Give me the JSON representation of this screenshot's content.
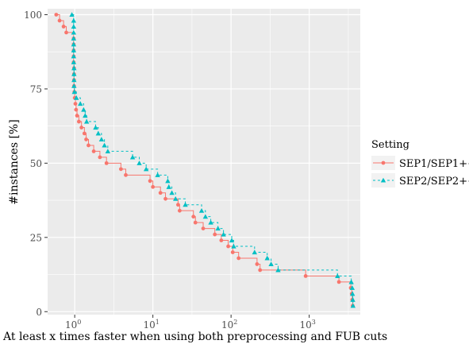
{
  "chart_data": {
    "type": "line",
    "title": "",
    "xlabel": "At least x times faster when using both preprocessing and FUB cuts",
    "ylabel": "#instances [%]",
    "x_scale": "log10",
    "xlim": [
      0.45,
      4500
    ],
    "ylim": [
      -1,
      102
    ],
    "x_ticks": [
      {
        "value": 1,
        "base": "10",
        "exp": "0"
      },
      {
        "value": 10,
        "base": "10",
        "exp": "1"
      },
      {
        "value": 100,
        "base": "10",
        "exp": "2"
      },
      {
        "value": 1000,
        "base": "10",
        "exp": "3"
      }
    ],
    "y_ticks": [
      0,
      25,
      50,
      75,
      100
    ],
    "grid": true,
    "legend": {
      "title": "Setting",
      "position": "right"
    },
    "series": [
      {
        "name": "SEP1/SEP1++",
        "color": "#F8766D",
        "linestyle": "solid",
        "marker": "circle",
        "points": [
          [
            0.58,
            100
          ],
          [
            0.64,
            98
          ],
          [
            0.72,
            96
          ],
          [
            0.78,
            94
          ],
          [
            0.97,
            92
          ],
          [
            0.97,
            90
          ],
          [
            0.97,
            88
          ],
          [
            0.97,
            86
          ],
          [
            0.97,
            84
          ],
          [
            0.98,
            82
          ],
          [
            0.98,
            80
          ],
          [
            0.98,
            78
          ],
          [
            0.98,
            76
          ],
          [
            0.99,
            74
          ],
          [
            1.0,
            72
          ],
          [
            1.02,
            70
          ],
          [
            1.04,
            68
          ],
          [
            1.07,
            66
          ],
          [
            1.13,
            64
          ],
          [
            1.22,
            62
          ],
          [
            1.33,
            60
          ],
          [
            1.4,
            58
          ],
          [
            1.5,
            56
          ],
          [
            1.75,
            54
          ],
          [
            2.1,
            52
          ],
          [
            2.55,
            50
          ],
          [
            3.9,
            48
          ],
          [
            4.5,
            46
          ],
          [
            9.2,
            44
          ],
          [
            10,
            42
          ],
          [
            12.5,
            40
          ],
          [
            14.5,
            38
          ],
          [
            21,
            36
          ],
          [
            22,
            34
          ],
          [
            33,
            32
          ],
          [
            35,
            30
          ],
          [
            44,
            28
          ],
          [
            62,
            26
          ],
          [
            75,
            24
          ],
          [
            92,
            22
          ],
          [
            105,
            20
          ],
          [
            125,
            18
          ],
          [
            215,
            16
          ],
          [
            235,
            14
          ],
          [
            900,
            12
          ],
          [
            2400,
            10
          ],
          [
            3400,
            8
          ],
          [
            3500,
            6
          ],
          [
            3550,
            4
          ],
          [
            3600,
            2
          ]
        ]
      },
      {
        "name": "SEP2/SEP2++",
        "color": "#00BFC4",
        "linestyle": "dashed",
        "marker": "triangle",
        "points": [
          [
            0.92,
            100
          ],
          [
            0.97,
            98
          ],
          [
            0.97,
            96
          ],
          [
            0.97,
            94
          ],
          [
            0.97,
            92
          ],
          [
            0.97,
            90
          ],
          [
            0.97,
            88
          ],
          [
            0.97,
            86
          ],
          [
            0.97,
            84
          ],
          [
            0.98,
            82
          ],
          [
            0.98,
            80
          ],
          [
            0.98,
            78
          ],
          [
            0.98,
            76
          ],
          [
            0.99,
            74
          ],
          [
            1.05,
            72
          ],
          [
            1.18,
            70
          ],
          [
            1.3,
            68
          ],
          [
            1.36,
            66
          ],
          [
            1.42,
            64
          ],
          [
            1.85,
            62
          ],
          [
            2.0,
            60
          ],
          [
            2.2,
            58
          ],
          [
            2.4,
            56
          ],
          [
            2.65,
            54
          ],
          [
            5.5,
            52
          ],
          [
            6.7,
            50
          ],
          [
            8.2,
            48
          ],
          [
            11.5,
            46
          ],
          [
            15.5,
            44
          ],
          [
            16,
            42
          ],
          [
            17.5,
            40
          ],
          [
            19.5,
            38
          ],
          [
            26,
            36
          ],
          [
            42,
            34
          ],
          [
            47,
            32
          ],
          [
            55,
            30
          ],
          [
            68,
            28
          ],
          [
            80,
            26
          ],
          [
            102,
            24
          ],
          [
            108,
            22
          ],
          [
            200,
            20
          ],
          [
            290,
            18
          ],
          [
            325,
            16
          ],
          [
            400,
            14
          ],
          [
            2300,
            12
          ],
          [
            3450,
            10
          ],
          [
            3550,
            8
          ],
          [
            3580,
            6
          ],
          [
            3610,
            4
          ],
          [
            3630,
            2
          ]
        ]
      }
    ]
  }
}
